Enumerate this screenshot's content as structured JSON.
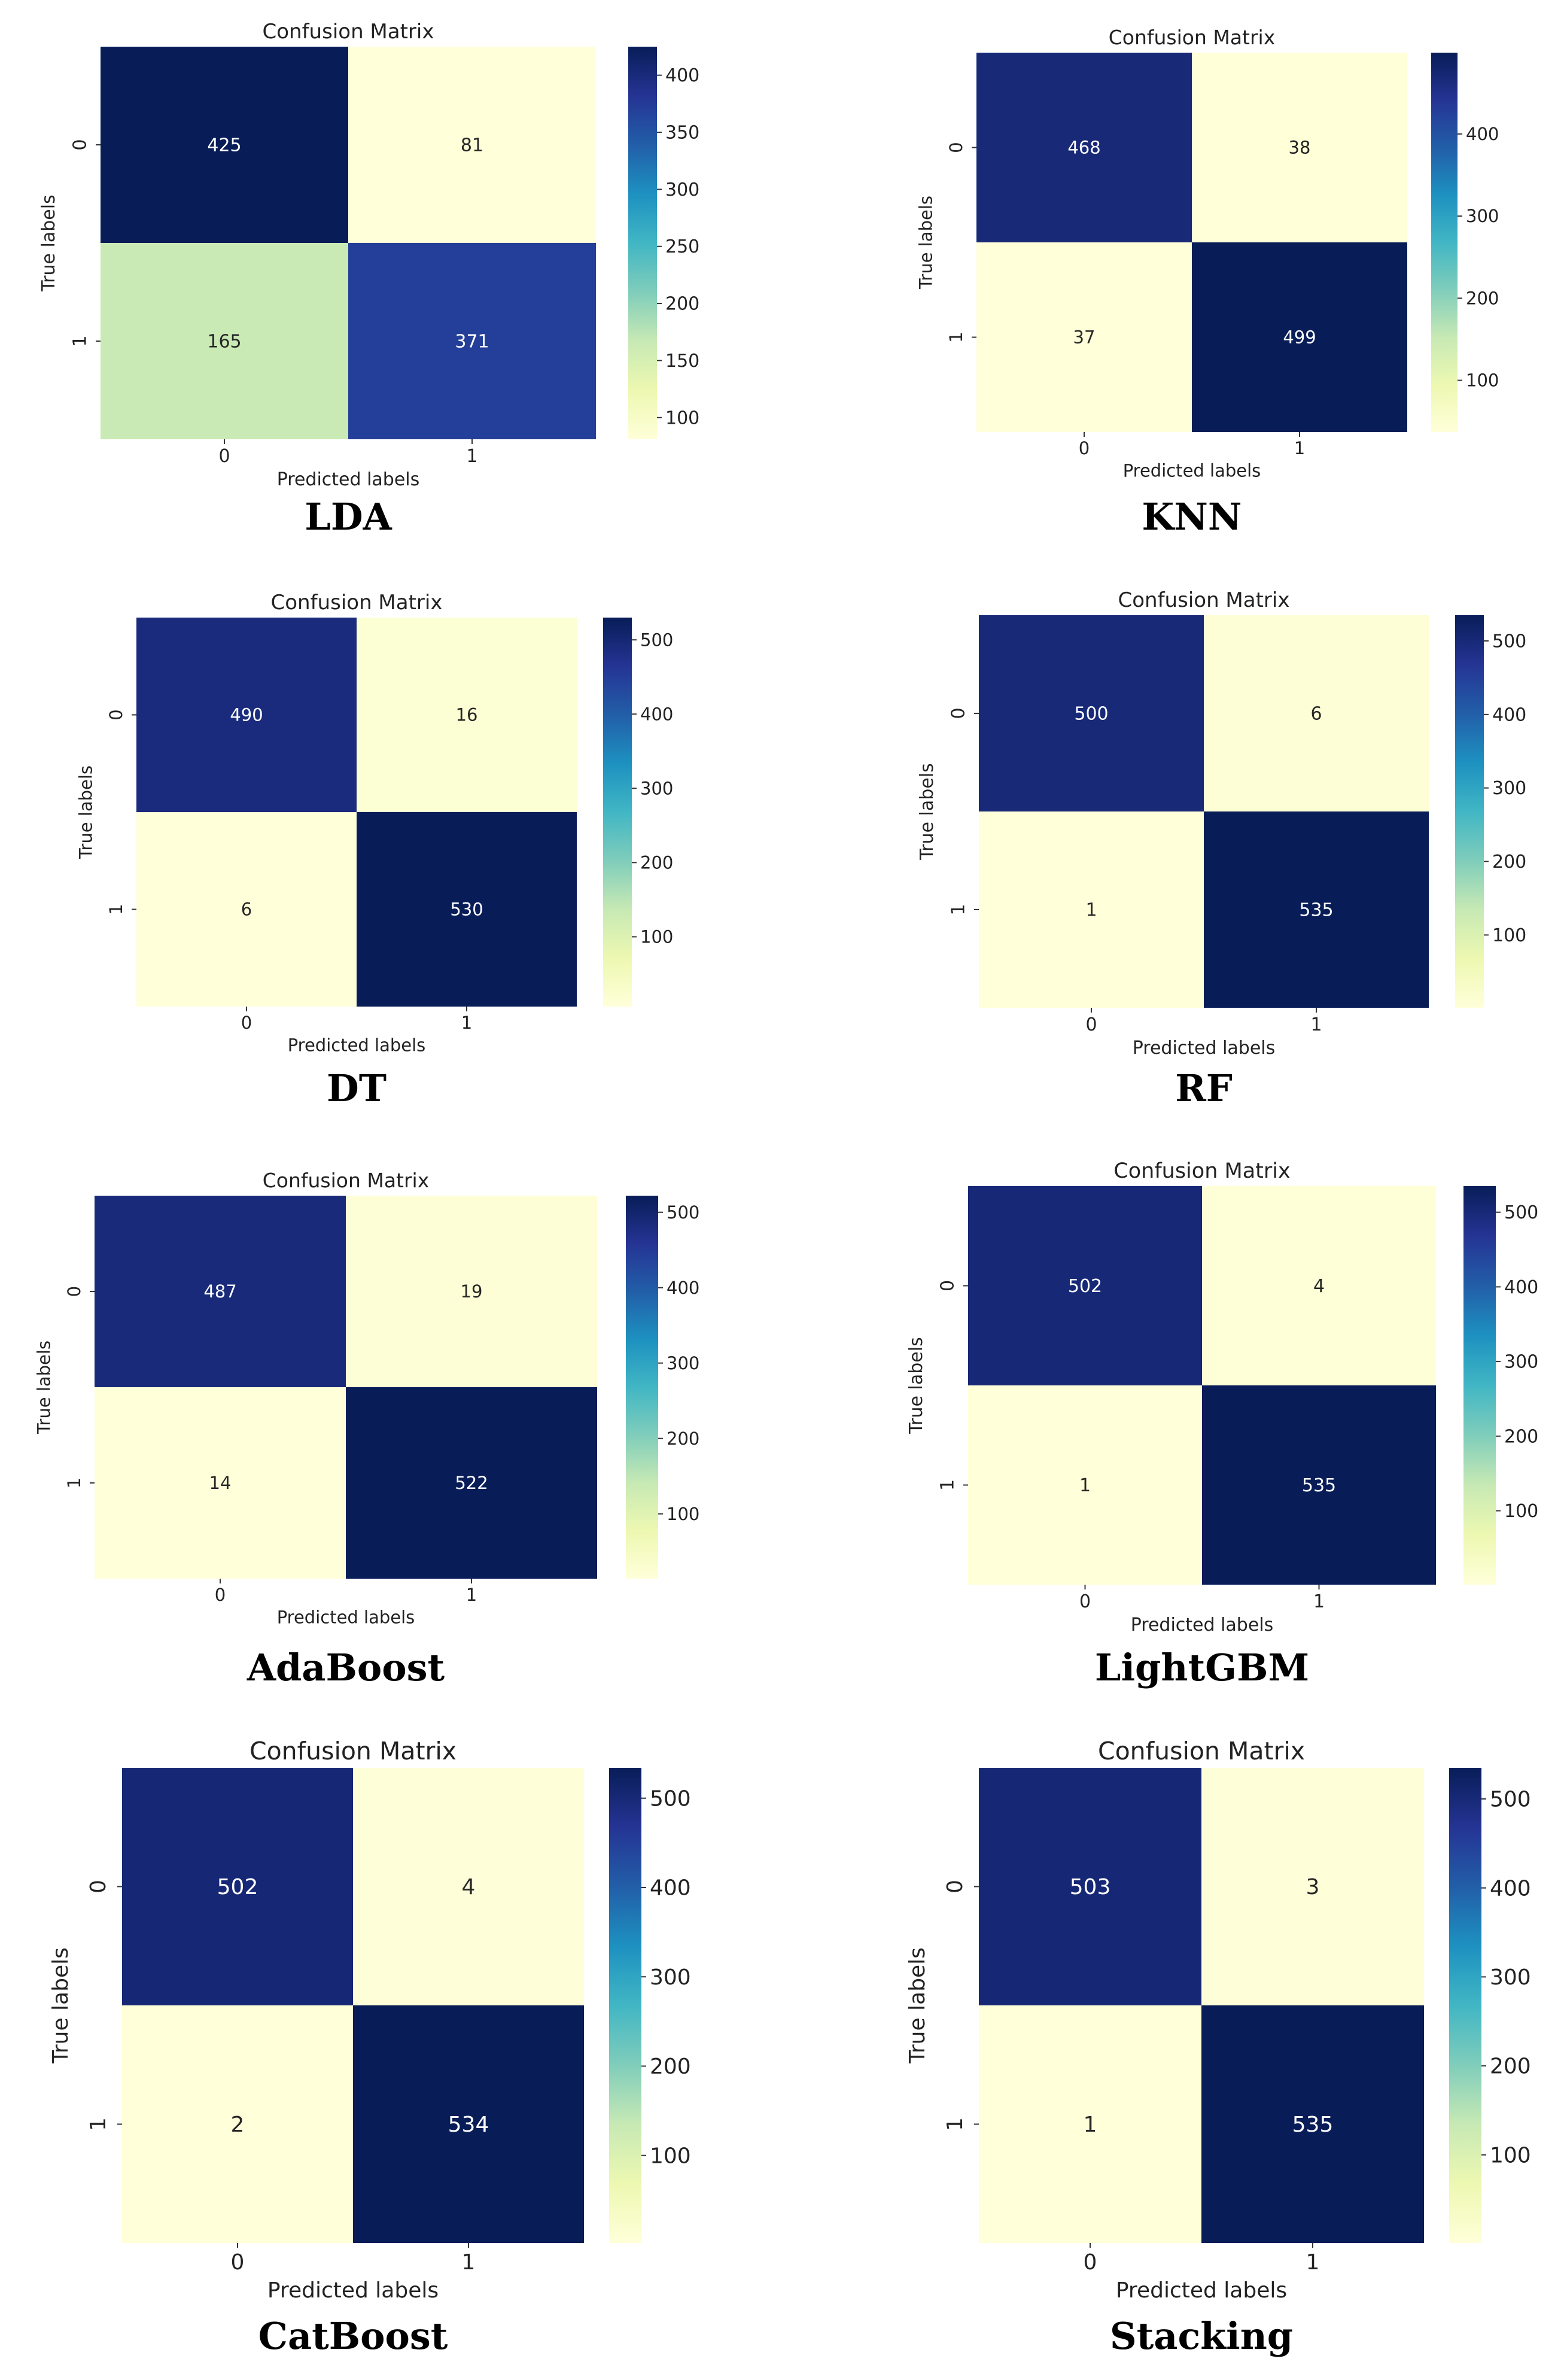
{
  "chart_data": [
    {
      "type": "heatmap",
      "title": "Confusion Matrix",
      "xlabel": "Predicted labels",
      "ylabel": "True labels",
      "x_ticks": [
        "0",
        "1"
      ],
      "y_ticks": [
        "0",
        "1"
      ],
      "values": [
        [
          425,
          81
        ],
        [
          165,
          371
        ]
      ],
      "colorbar": {
        "ticks": [
          100,
          150,
          200,
          250,
          300,
          350,
          400
        ],
        "range": [
          81,
          425
        ]
      },
      "caption": "LDA"
    },
    {
      "type": "heatmap",
      "title": "Confusion Matrix",
      "xlabel": "Predicted labels",
      "ylabel": "True labels",
      "x_ticks": [
        "0",
        "1"
      ],
      "y_ticks": [
        "0",
        "1"
      ],
      "values": [
        [
          468,
          38
        ],
        [
          37,
          499
        ]
      ],
      "colorbar": {
        "ticks": [
          100,
          200,
          300,
          400
        ],
        "range": [
          37,
          499
        ]
      },
      "caption": "KNN"
    },
    {
      "type": "heatmap",
      "title": "Confusion Matrix",
      "xlabel": "Predicted labels",
      "ylabel": "True labels",
      "x_ticks": [
        "0",
        "1"
      ],
      "y_ticks": [
        "0",
        "1"
      ],
      "values": [
        [
          490,
          16
        ],
        [
          6,
          530
        ]
      ],
      "colorbar": {
        "ticks": [
          100,
          200,
          300,
          400,
          500
        ],
        "range": [
          6,
          530
        ]
      },
      "caption": "DT"
    },
    {
      "type": "heatmap",
      "title": "Confusion Matrix",
      "xlabel": "Predicted labels",
      "ylabel": "True labels",
      "x_ticks": [
        "0",
        "1"
      ],
      "y_ticks": [
        "0",
        "1"
      ],
      "values": [
        [
          500,
          6
        ],
        [
          1,
          535
        ]
      ],
      "colorbar": {
        "ticks": [
          100,
          200,
          300,
          400,
          500
        ],
        "range": [
          1,
          535
        ]
      },
      "caption": "RF"
    },
    {
      "type": "heatmap",
      "title": "Confusion Matrix",
      "xlabel": "Predicted labels",
      "ylabel": "True labels",
      "x_ticks": [
        "0",
        "1"
      ],
      "y_ticks": [
        "0",
        "1"
      ],
      "values": [
        [
          487,
          19
        ],
        [
          14,
          522
        ]
      ],
      "colorbar": {
        "ticks": [
          100,
          200,
          300,
          400,
          500
        ],
        "range": [
          14,
          522
        ]
      },
      "caption": "AdaBoost"
    },
    {
      "type": "heatmap",
      "title": "Confusion Matrix",
      "xlabel": "Predicted labels",
      "ylabel": "True labels",
      "x_ticks": [
        "0",
        "1"
      ],
      "y_ticks": [
        "0",
        "1"
      ],
      "values": [
        [
          502,
          4
        ],
        [
          1,
          535
        ]
      ],
      "colorbar": {
        "ticks": [
          100,
          200,
          300,
          400,
          500
        ],
        "range": [
          1,
          535
        ]
      },
      "caption": "LightGBM"
    },
    {
      "type": "heatmap",
      "title": "Confusion Matrix",
      "xlabel": "Predicted labels",
      "ylabel": "True labels",
      "x_ticks": [
        "0",
        "1"
      ],
      "y_ticks": [
        "0",
        "1"
      ],
      "values": [
        [
          502,
          4
        ],
        [
          2,
          534
        ]
      ],
      "colorbar": {
        "ticks": [
          100,
          200,
          300,
          400,
          500
        ],
        "range": [
          2,
          534
        ]
      },
      "caption": "CatBoost"
    },
    {
      "type": "heatmap",
      "title": "Confusion Matrix",
      "xlabel": "Predicted labels",
      "ylabel": "True labels",
      "x_ticks": [
        "0",
        "1"
      ],
      "y_ticks": [
        "0",
        "1"
      ],
      "values": [
        [
          503,
          3
        ],
        [
          1,
          535
        ]
      ],
      "colorbar": {
        "ticks": [
          100,
          200,
          300,
          400,
          500
        ],
        "range": [
          1,
          535
        ]
      },
      "caption": "Stacking"
    }
  ],
  "colormap": [
    "#ffffd9",
    "#edf8b1",
    "#c7e9b4",
    "#7fcdbb",
    "#41b6c4",
    "#1d91c0",
    "#225ea8",
    "#253494",
    "#081d58"
  ]
}
